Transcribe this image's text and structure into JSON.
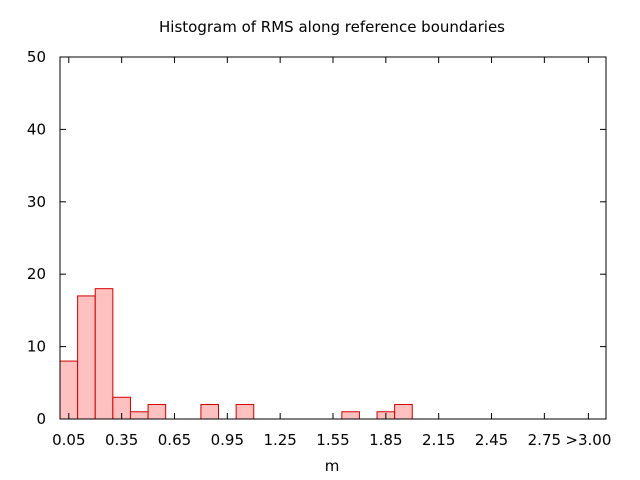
{
  "chart_data": {
    "type": "bar",
    "title": "Histogram of RMS along reference boundaries",
    "xlabel": "m",
    "ylabel": "",
    "ylim": [
      0,
      50
    ],
    "yticks": [
      0,
      10,
      20,
      30,
      40,
      50
    ],
    "xlim": [
      0,
      3.1
    ],
    "bin_width": 0.1,
    "xticks": [
      {
        "value": 0.05,
        "label": "0.05"
      },
      {
        "value": 0.35,
        "label": "0.35"
      },
      {
        "value": 0.65,
        "label": "0.65"
      },
      {
        "value": 0.95,
        "label": "0.95"
      },
      {
        "value": 1.25,
        "label": "1.25"
      },
      {
        "value": 1.55,
        "label": "1.55"
      },
      {
        "value": 1.85,
        "label": "1.85"
      },
      {
        "value": 2.15,
        "label": "2.15"
      },
      {
        "value": 2.45,
        "label": "2.45"
      },
      {
        "value": 2.75,
        "label": "2.75"
      },
      {
        "value": 3.0,
        "label": ">3.00"
      }
    ],
    "bins": [
      {
        "x": 0.05,
        "count": 8
      },
      {
        "x": 0.15,
        "count": 17
      },
      {
        "x": 0.25,
        "count": 18
      },
      {
        "x": 0.35,
        "count": 3
      },
      {
        "x": 0.45,
        "count": 1
      },
      {
        "x": 0.55,
        "count": 2
      },
      {
        "x": 0.85,
        "count": 2
      },
      {
        "x": 1.05,
        "count": 2
      },
      {
        "x": 1.65,
        "count": 1
      },
      {
        "x": 1.85,
        "count": 1
      },
      {
        "x": 1.95,
        "count": 2
      }
    ],
    "colors": {
      "bar_fill": "#ffc0c0",
      "bar_stroke": "#d00000"
    },
    "grid": false
  }
}
